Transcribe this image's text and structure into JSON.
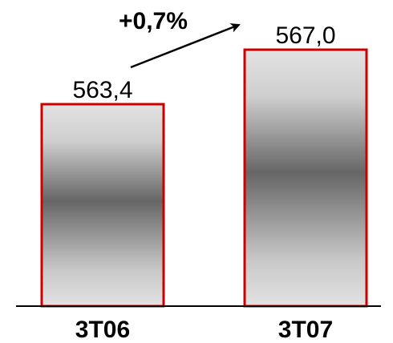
{
  "chart_data": {
    "type": "bar",
    "categories": [
      "3T06",
      "3T07"
    ],
    "values": [
      563.4,
      567.0
    ],
    "value_labels": [
      "563,4",
      "567,0"
    ],
    "annotation": "+0,7%",
    "title": "",
    "xlabel": "",
    "ylabel": "",
    "grid": false,
    "colors": {
      "bar_border": "#cc0000",
      "bar_fill_light": "#e0e0e0",
      "bar_fill_dark": "#666666",
      "axis": "#000000",
      "arrow": "#000000"
    }
  }
}
